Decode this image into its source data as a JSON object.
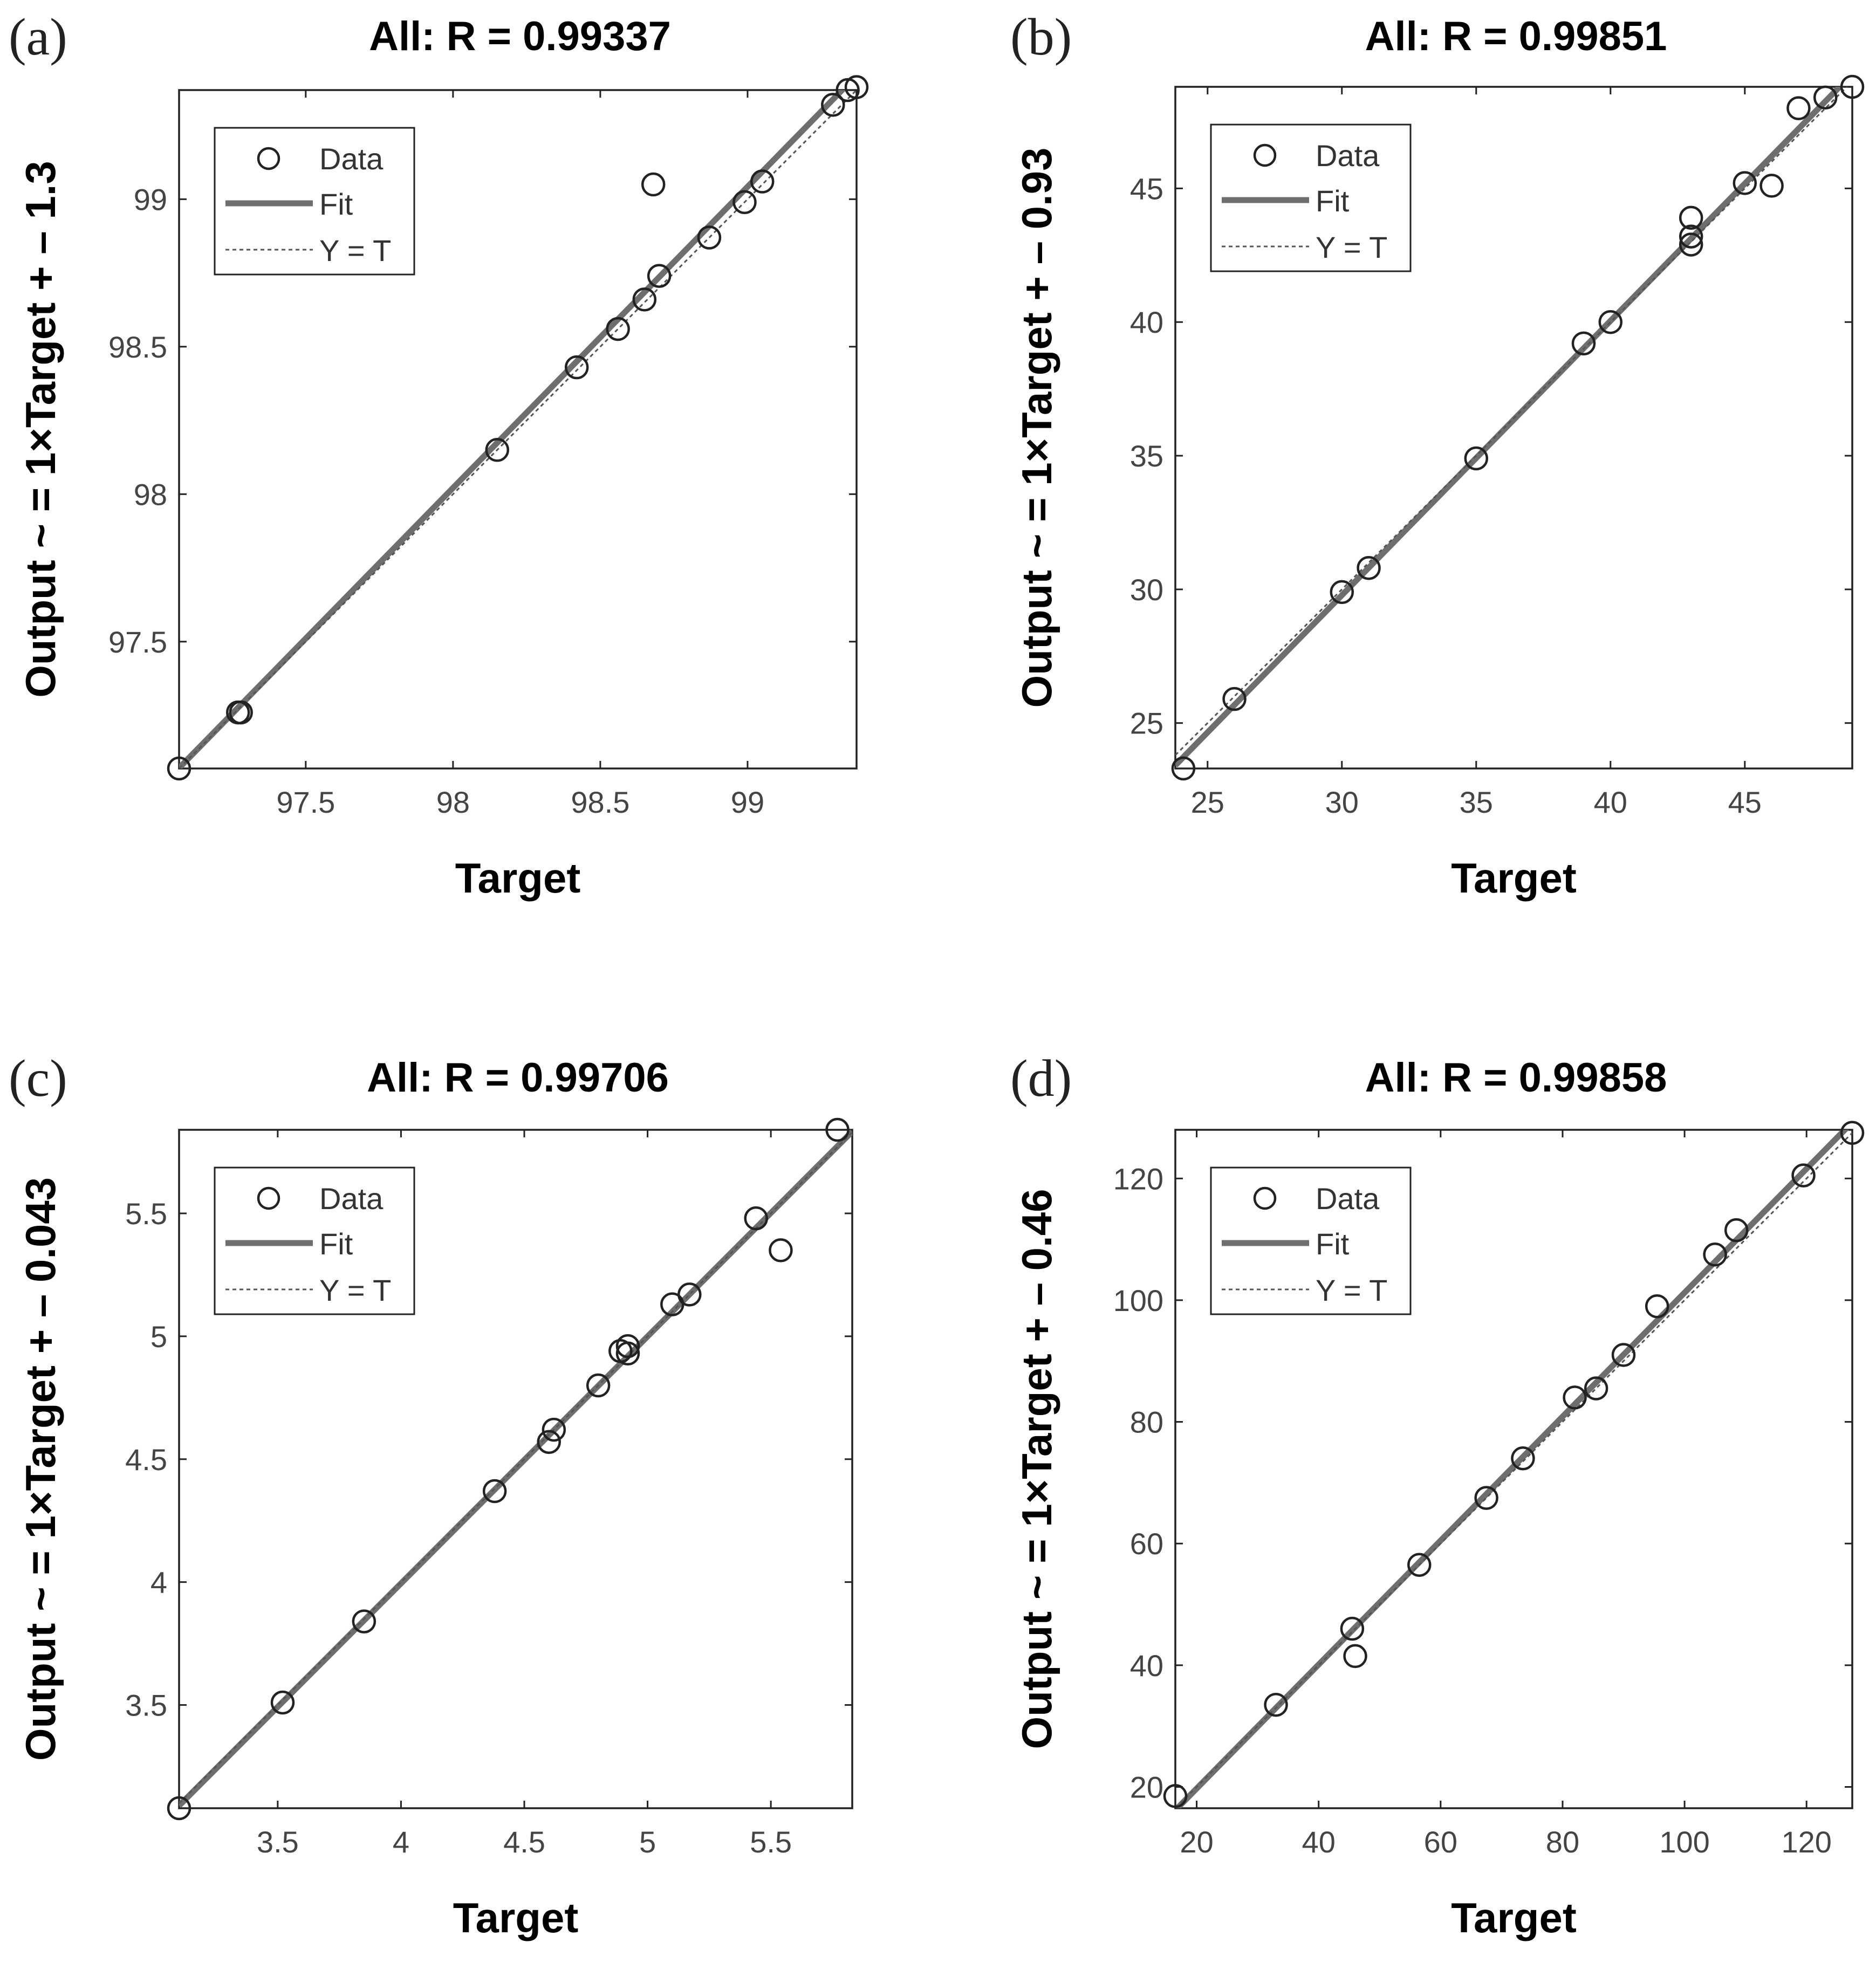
{
  "chart_data": [
    {
      "type": "scatter",
      "panel_label": "(a)",
      "title": "All: R = 0.99337",
      "xlabel": "Target",
      "ylabel": "Output ~ = 1×Target + – 1.3",
      "xlim": [
        97.07,
        99.37
      ],
      "ylim": [
        97.07,
        99.37
      ],
      "xticks": [
        97.5,
        98,
        98.5,
        99
      ],
      "yticks": [
        97.5,
        98,
        98.5,
        99
      ],
      "xtick_labels": [
        "97.5",
        "98",
        "98.5",
        "99"
      ],
      "ytick_labels": [
        "97.5",
        "98",
        "98.5",
        "99"
      ],
      "fit": {
        "slope": 1,
        "intercept": -1.3
      },
      "legend": {
        "data": "Data",
        "fit": "Fit",
        "identity": "Y = T",
        "position": "top-left"
      },
      "points": [
        {
          "x": 97.07,
          "y": 97.07
        },
        {
          "x": 97.27,
          "y": 97.26
        },
        {
          "x": 97.28,
          "y": 97.26
        },
        {
          "x": 98.15,
          "y": 98.15
        },
        {
          "x": 98.42,
          "y": 98.43
        },
        {
          "x": 98.56,
          "y": 98.56
        },
        {
          "x": 98.65,
          "y": 98.66
        },
        {
          "x": 98.7,
          "y": 98.74
        },
        {
          "x": 98.68,
          "y": 99.05
        },
        {
          "x": 98.87,
          "y": 98.87
        },
        {
          "x": 98.99,
          "y": 98.99
        },
        {
          "x": 99.05,
          "y": 99.06
        },
        {
          "x": 99.29,
          "y": 99.32
        },
        {
          "x": 99.34,
          "y": 99.37
        },
        {
          "x": 99.37,
          "y": 99.38
        }
      ]
    },
    {
      "type": "scatter",
      "panel_label": "(b)",
      "title": "All: R = 0.99851",
      "xlabel": "Target",
      "ylabel": "Output ~ = 1×Target + – 0.93",
      "xlim": [
        23.8,
        49.0
      ],
      "ylim": [
        23.3,
        48.8
      ],
      "xticks": [
        25,
        30,
        35,
        40,
        45
      ],
      "yticks": [
        25,
        30,
        35,
        40,
        45
      ],
      "xtick_labels": [
        "25",
        "30",
        "35",
        "40",
        "45"
      ],
      "ytick_labels": [
        "25",
        "30",
        "35",
        "40",
        "45"
      ],
      "fit": {
        "slope": 1,
        "intercept": -0.93
      },
      "legend": {
        "data": "Data",
        "fit": "Fit",
        "identity": "Y = T",
        "position": "top-left"
      },
      "points": [
        {
          "x": 24.1,
          "y": 23.3
        },
        {
          "x": 26.0,
          "y": 25.9
        },
        {
          "x": 30.0,
          "y": 29.9
        },
        {
          "x": 31.0,
          "y": 30.8
        },
        {
          "x": 35.0,
          "y": 34.9
        },
        {
          "x": 39.0,
          "y": 39.2
        },
        {
          "x": 40.0,
          "y": 40.0
        },
        {
          "x": 43.0,
          "y": 43.9
        },
        {
          "x": 43.0,
          "y": 43.2
        },
        {
          "x": 43.0,
          "y": 42.9
        },
        {
          "x": 45.0,
          "y": 45.2
        },
        {
          "x": 46.0,
          "y": 45.1
        },
        {
          "x": 47.0,
          "y": 48.0
        },
        {
          "x": 48.0,
          "y": 48.4
        },
        {
          "x": 49.0,
          "y": 48.8
        }
      ]
    },
    {
      "type": "scatter",
      "panel_label": "(c)",
      "title": "All: R = 0.99706",
      "xlabel": "Target",
      "ylabel": "Output ~ = 1×Target + – 0.043",
      "xlim": [
        3.1,
        5.83
      ],
      "ylim": [
        3.08,
        5.84
      ],
      "xticks": [
        3.5,
        4,
        4.5,
        5,
        5.5
      ],
      "yticks": [
        3.5,
        4,
        4.5,
        5,
        5.5
      ],
      "xtick_labels": [
        "3.5",
        "4",
        "4.5",
        "5",
        "5.5"
      ],
      "ytick_labels": [
        "3.5",
        "4",
        "4.5",
        "5",
        "5.5"
      ],
      "fit": {
        "slope": 1,
        "intercept": -0.043
      },
      "legend": {
        "data": "Data",
        "fit": "Fit",
        "identity": "Y = T",
        "position": "top-left"
      },
      "points": [
        {
          "x": 3.1,
          "y": 3.08
        },
        {
          "x": 3.52,
          "y": 3.51
        },
        {
          "x": 3.85,
          "y": 3.84
        },
        {
          "x": 4.38,
          "y": 4.37
        },
        {
          "x": 4.6,
          "y": 4.57
        },
        {
          "x": 4.62,
          "y": 4.62
        },
        {
          "x": 4.8,
          "y": 4.8
        },
        {
          "x": 4.89,
          "y": 4.94
        },
        {
          "x": 4.92,
          "y": 4.96
        },
        {
          "x": 4.92,
          "y": 4.93
        },
        {
          "x": 5.1,
          "y": 5.13
        },
        {
          "x": 5.17,
          "y": 5.17
        },
        {
          "x": 5.44,
          "y": 5.48
        },
        {
          "x": 5.54,
          "y": 5.35
        },
        {
          "x": 5.77,
          "y": 5.84
        }
      ]
    },
    {
      "type": "scatter",
      "panel_label": "(d)",
      "title": "All: R = 0.99858",
      "xlabel": "Target",
      "ylabel": "Output ~ = 1×Target + – 0.46",
      "xlim": [
        16.5,
        127.5
      ],
      "ylim": [
        16.5,
        128
      ],
      "xticks": [
        20,
        40,
        60,
        80,
        100,
        120
      ],
      "yticks": [
        20,
        40,
        60,
        80,
        100,
        120
      ],
      "xtick_labels": [
        "20",
        "40",
        "60",
        "80",
        "100",
        "120"
      ],
      "ytick_labels": [
        "20",
        "40",
        "60",
        "80",
        "100",
        "120"
      ],
      "fit": {
        "slope": 1,
        "intercept": -0.46
      },
      "legend": {
        "data": "Data",
        "fit": "Fit",
        "identity": "Y = T",
        "position": "top-left"
      },
      "points": [
        {
          "x": 16.5,
          "y": 18.5
        },
        {
          "x": 33.0,
          "y": 33.5
        },
        {
          "x": 45.5,
          "y": 46.0
        },
        {
          "x": 46.0,
          "y": 41.5
        },
        {
          "x": 56.5,
          "y": 56.5
        },
        {
          "x": 67.5,
          "y": 67.5
        },
        {
          "x": 73.5,
          "y": 74.0
        },
        {
          "x": 82.0,
          "y": 84.0
        },
        {
          "x": 85.5,
          "y": 85.5
        },
        {
          "x": 90.0,
          "y": 91.0
        },
        {
          "x": 95.5,
          "y": 99.0
        },
        {
          "x": 105.0,
          "y": 107.5
        },
        {
          "x": 108.5,
          "y": 111.5
        },
        {
          "x": 119.5,
          "y": 120.5
        },
        {
          "x": 127.5,
          "y": 127.5
        }
      ]
    }
  ]
}
